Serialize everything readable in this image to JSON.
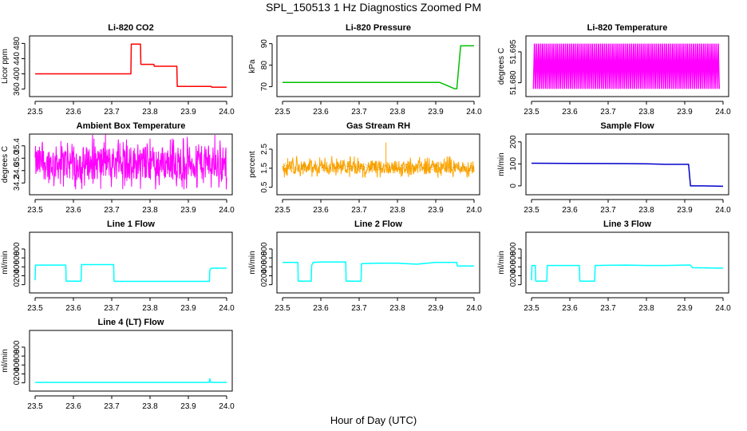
{
  "figure": {
    "title": "SPL_150513  1 Hz Diagnostics Zoomed PM",
    "xlabel": "Hour of Day (UTC)"
  },
  "chart_data": [
    {
      "id": "co2",
      "type": "line",
      "title": "Li-820 CO2",
      "ylabel": "Licor ppm",
      "color": "#ff0000",
      "xlim": [
        23.5,
        24.0
      ],
      "xticks": [
        23.5,
        23.6,
        23.7,
        23.8,
        23.9,
        24.0
      ],
      "ylim": [
        355,
        485
      ],
      "yticks": [
        360,
        400,
        440,
        480
      ],
      "x": [
        23.5,
        23.75,
        23.751,
        23.775,
        23.776,
        23.81,
        23.811,
        23.87,
        23.871,
        23.96,
        23.961,
        24.0
      ],
      "y": [
        400,
        400,
        478,
        478,
        425,
        425,
        420,
        420,
        367,
        367,
        365,
        365
      ]
    },
    {
      "id": "pressure",
      "type": "line",
      "title": "Li-820 Pressure",
      "ylabel": "kPa",
      "color": "#00c000",
      "xlim": [
        23.5,
        24.0
      ],
      "xticks": [
        23.5,
        23.6,
        23.7,
        23.8,
        23.9,
        24.0
      ],
      "ylim": [
        68,
        91
      ],
      "yticks": [
        70,
        80,
        90
      ],
      "x": [
        23.5,
        23.9,
        23.91,
        23.95,
        23.955,
        23.965,
        23.97,
        24.0
      ],
      "y": [
        72,
        72,
        72,
        69,
        69,
        89,
        89,
        89
      ]
    },
    {
      "id": "licor_temp",
      "type": "line",
      "title": "Li-820 Temperature",
      "ylabel": "degrees C",
      "color": "#ff00ff",
      "xlim": [
        23.5,
        24.0
      ],
      "xticks": [
        23.5,
        23.6,
        23.7,
        23.8,
        23.9,
        24.0
      ],
      "ylim": [
        51.676,
        51.7
      ],
      "yticks": [
        51.68,
        51.695
      ],
      "x": [
        23.505,
        23.99
      ],
      "y": [
        51.677,
        51.699
      ]
    },
    {
      "id": "box_temp",
      "type": "line",
      "title": "Ambient Box Temperature",
      "ylabel": "degrees C",
      "color": "#ff00ff",
      "xlim": [
        23.5,
        24.0
      ],
      "xticks": [
        23.5,
        23.6,
        23.7,
        23.8,
        23.9,
        24.0
      ],
      "ylim": [
        34.0,
        35.6
      ],
      "yticks": [
        34.2,
        34.6,
        35.0,
        35.4
      ],
      "x": [
        23.5,
        24.0
      ],
      "y": [
        34.3,
        35.4
      ]
    },
    {
      "id": "rh",
      "type": "line",
      "title": "Gas Stream RH",
      "ylabel": "percent",
      "color": "#ffa500",
      "xlim": [
        23.5,
        24.0
      ],
      "xticks": [
        23.5,
        23.6,
        23.7,
        23.8,
        23.9,
        24.0
      ],
      "ylim": [
        0.4,
        3.0
      ],
      "yticks": [
        0.5,
        1.5,
        2.5
      ],
      "x": [
        23.5,
        24.0
      ],
      "y": [
        1.2,
        1.9
      ]
    },
    {
      "id": "sample_flow",
      "type": "line",
      "title": "Sample Flow",
      "ylabel": "ml/min",
      "color": "#0000cc",
      "xlim": [
        23.5,
        24.0
      ],
      "xticks": [
        23.5,
        23.6,
        23.7,
        23.8,
        23.9,
        24.0
      ],
      "ylim": [
        -15,
        210
      ],
      "yticks": [
        0,
        100,
        200
      ],
      "x": [
        23.5,
        23.6,
        23.75,
        23.8,
        23.85,
        23.91,
        23.915,
        23.95,
        24.0
      ],
      "y": [
        103,
        102,
        101,
        100,
        98,
        98,
        0,
        0,
        -2
      ]
    },
    {
      "id": "line1",
      "type": "line",
      "title": "Line 1 Flow",
      "ylabel": "ml/min",
      "color": "#00ffff",
      "xlim": [
        23.5,
        24.0
      ],
      "xticks": [
        23.5,
        23.6,
        23.7,
        23.8,
        23.9,
        24.0
      ],
      "ylim": [
        -60,
        1050
      ],
      "yticks": [
        0,
        200,
        400,
        600,
        800
      ],
      "x": [
        23.5,
        23.501,
        23.58,
        23.581,
        23.62,
        23.621,
        23.705,
        23.706,
        23.955,
        23.956,
        23.96,
        24.0
      ],
      "y": [
        100,
        440,
        440,
        80,
        80,
        450,
        450,
        75,
        75,
        330,
        370,
        370
      ]
    },
    {
      "id": "line2",
      "type": "line",
      "title": "Line 2 Flow",
      "ylabel": "ml/min",
      "color": "#00ffff",
      "xlim": [
        23.5,
        24.0
      ],
      "xticks": [
        23.5,
        23.6,
        23.7,
        23.8,
        23.9,
        24.0
      ],
      "ylim": [
        -60,
        1050
      ],
      "yticks": [
        0,
        200,
        400,
        600,
        800
      ],
      "x": [
        23.5,
        23.54,
        23.541,
        23.575,
        23.576,
        23.58,
        23.6,
        23.665,
        23.666,
        23.705,
        23.706,
        23.75,
        23.8,
        23.85,
        23.9,
        23.955,
        23.956,
        24.0
      ],
      "y": [
        500,
        500,
        80,
        80,
        430,
        500,
        510,
        510,
        80,
        80,
        470,
        480,
        480,
        460,
        500,
        500,
        420,
        420
      ]
    },
    {
      "id": "line3",
      "type": "line",
      "title": "Line 3 Flow",
      "ylabel": "ml/min",
      "color": "#00ffff",
      "xlim": [
        23.5,
        24.0
      ],
      "xticks": [
        23.5,
        23.6,
        23.7,
        23.8,
        23.9,
        24.0
      ],
      "ylim": [
        -60,
        1050
      ],
      "yticks": [
        0,
        200,
        400,
        600,
        800
      ],
      "x": [
        23.5,
        23.501,
        23.51,
        23.511,
        23.54,
        23.541,
        23.625,
        23.626,
        23.665,
        23.666,
        23.75,
        23.8,
        23.85,
        23.9,
        23.915,
        23.92,
        24.0
      ],
      "y": [
        100,
        430,
        430,
        80,
        80,
        430,
        430,
        80,
        80,
        430,
        440,
        430,
        430,
        440,
        440,
        380,
        370
      ]
    },
    {
      "id": "line4",
      "type": "line",
      "title": "Line 4 (LT) Flow",
      "ylabel": "ml/min",
      "color": "#00ffff",
      "xlim": [
        23.5,
        24.0
      ],
      "xticks": [
        23.5,
        23.6,
        23.7,
        23.8,
        23.9,
        24.0
      ],
      "ylim": [
        -60,
        1050
      ],
      "yticks": [
        0,
        200,
        400,
        600,
        800
      ],
      "x": [
        23.5,
        23.955,
        23.956,
        23.958,
        23.96,
        24.0
      ],
      "y": [
        10,
        10,
        90,
        20,
        10,
        10
      ]
    }
  ]
}
